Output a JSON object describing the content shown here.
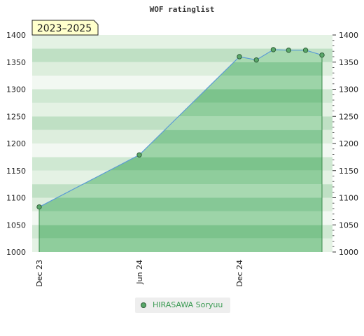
{
  "chart_data": {
    "type": "area",
    "title": "WOF ratinglist",
    "badge": "2023–2025",
    "ylim": [
      1000,
      1400
    ],
    "yticks": [
      1000,
      1050,
      1100,
      1150,
      1200,
      1250,
      1300,
      1350,
      1400
    ],
    "xticks": [
      "Dec 23",
      "Jun 24",
      "Dec 24"
    ],
    "series": [
      {
        "name": "HIRASAWA Soryuu",
        "color": "#5aa86a",
        "points": [
          {
            "x": "2023-12-01",
            "y": 1083
          },
          {
            "x": "2024-06-01",
            "y": 1179
          },
          {
            "x": "2024-12-01",
            "y": 1360
          },
          {
            "x": "2025-01-01",
            "y": 1354
          },
          {
            "x": "2025-02-01",
            "y": 1373
          },
          {
            "x": "2025-03-01",
            "y": 1372
          },
          {
            "x": "2025-04-01",
            "y": 1372
          },
          {
            "x": "2025-05-01",
            "y": 1363
          }
        ]
      }
    ],
    "grid": "bands",
    "legend_position": "bottom"
  }
}
